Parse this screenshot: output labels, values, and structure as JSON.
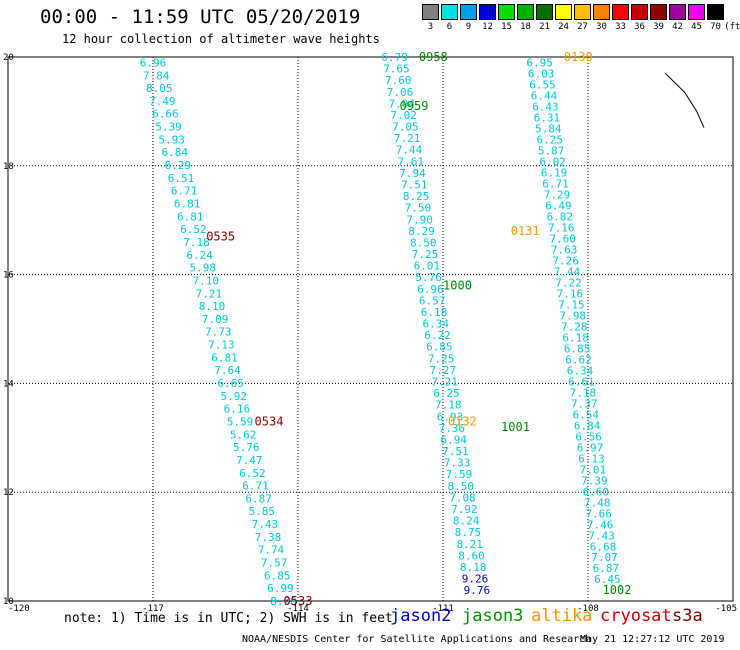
{
  "header": {
    "title": "00:00 - 11:59 UTC 05/20/2019",
    "subtitle": "12 hour collection of altimeter wave heights"
  },
  "colorscale": {
    "unit": "(ft)",
    "bins": [
      {
        "label": "3",
        "color": "#808080"
      },
      {
        "label": "6",
        "color": "#00e0e0"
      },
      {
        "label": "9",
        "color": "#00a0e8"
      },
      {
        "label": "12",
        "color": "#0000d8"
      },
      {
        "label": "15",
        "color": "#00e000"
      },
      {
        "label": "18",
        "color": "#00b000"
      },
      {
        "label": "21",
        "color": "#007000"
      },
      {
        "label": "24",
        "color": "#ffff00"
      },
      {
        "label": "27",
        "color": "#ffc000"
      },
      {
        "label": "30",
        "color": "#ff8000"
      },
      {
        "label": "33",
        "color": "#ff0000"
      },
      {
        "label": "36",
        "color": "#c80000"
      },
      {
        "label": "39",
        "color": "#900000"
      },
      {
        "label": "42",
        "color": "#a000a0"
      },
      {
        "label": "45",
        "color": "#f000f0"
      },
      {
        "label": "70",
        "color": "#000000"
      }
    ]
  },
  "footer": {
    "note": "note: 1) Time is in UTC; 2) SWH is in feet",
    "legend": [
      {
        "label": "jason2",
        "color": "#0000d0"
      },
      {
        "label": "jason3",
        "color": "#009000"
      },
      {
        "label": "altika",
        "color": "#ff9000"
      },
      {
        "label": "cryosat",
        "color": "#d00000"
      },
      {
        "label": "s3a",
        "color": "#800000"
      }
    ],
    "credit": "NOAA/NESDIS Center for Satellite Applications and Research",
    "stamp": "May 21 12:27:12 UTC 2019"
  },
  "chart_data": {
    "type": "scatter",
    "title": "12 hour collection of altimeter wave heights",
    "xlim": [
      -120,
      -105
    ],
    "ylim": [
      10,
      20
    ],
    "xticks": [
      "-120",
      "-117",
      "-114",
      "-111",
      "-108",
      "-105"
    ],
    "yticks": [
      "10",
      "12",
      "14",
      "16",
      "18",
      "20"
    ],
    "grid": true,
    "colors": {
      "cyan": "#00c8d8",
      "blue": "#0000c0",
      "green": "#008800",
      "orange": "#ff9900",
      "darkred": "#8b0000"
    },
    "tracks": [
      {
        "name": "s3a",
        "color_key": "darkred",
        "start": [
          -117.0,
          19.9
        ],
        "end": [
          -114.3,
          10.0
        ],
        "values": [
          "6.96",
          "7.84",
          "8.05",
          "7.49",
          "6.66",
          "5.39",
          "5.93",
          "6.84",
          "6.29",
          "6.51",
          "6.71",
          "6.81",
          "6.81",
          "6.52",
          "7.18",
          "6.24",
          "5.98",
          "7.10",
          "7.21",
          "8.10",
          "7.09",
          "7.73",
          "7.13",
          "6.81",
          "7.64",
          "6.65",
          "5.92",
          "6.16",
          "5.59",
          "5.62",
          "5.76",
          "7.47",
          "6.52",
          "6.71",
          "6.87",
          "5.85",
          "7.43",
          "7.38",
          "7.74",
          "7.57",
          "6.85",
          "6.99",
          "8.98"
        ],
        "times": [
          {
            "label": "0535",
            "lon": -115.6,
            "lat": 16.7
          },
          {
            "label": "0534",
            "lon": -114.6,
            "lat": 13.3
          },
          {
            "label": "0533",
            "lon": -114.0,
            "lat": 10.0
          }
        ]
      },
      {
        "name": "jason3",
        "color_key": "green",
        "start": [
          -112.0,
          20.0
        ],
        "end": [
          -110.3,
          10.2
        ],
        "values": [
          "6.79",
          "7.65",
          "7.60",
          "7.06",
          "7.94",
          "7.02",
          "7.05",
          "7.21",
          "7.44",
          "7.61",
          "7.94",
          "7.51",
          "8.25",
          "7.50",
          "7.90",
          "8.29",
          "8.50",
          "7.25",
          "6.01",
          "5.76",
          "6.96",
          "6.57",
          "6.18",
          "6.34",
          "6.22",
          "6.85",
          "7.25",
          "7.27",
          "7.21",
          "6.25",
          "7.18",
          "6.93",
          "7.36",
          "6.94",
          "7.51",
          "7.33",
          "7.59",
          "8.50",
          "7.08",
          "7.92",
          "8.24",
          "8.75",
          "8.21",
          "8.60",
          "8.18",
          "9.26",
          "9.76"
        ],
        "blue_from": 45,
        "times": [
          {
            "label": "0958",
            "lon": -111.2,
            "lat": 20.0
          },
          {
            "label": "0959",
            "lon": -111.6,
            "lat": 19.1
          },
          {
            "label": "1000",
            "lon": -110.7,
            "lat": 15.8
          },
          {
            "label": "1001",
            "lon": -109.5,
            "lat": 13.2
          },
          {
            "label": "1002",
            "lon": -107.4,
            "lat": 10.2
          }
        ]
      },
      {
        "name": "altika",
        "color_key": "orange",
        "start": [
          -109.0,
          19.9
        ],
        "end": [
          -107.6,
          10.4
        ],
        "values": [
          "6.95",
          "6.03",
          "6.55",
          "6.44",
          "6.43",
          "6.31",
          "5.84",
          "6.25",
          "5.87",
          "6.02",
          "6.19",
          "6.71",
          "7.29",
          "6.49",
          "6.82",
          "7.16",
          "7.60",
          "7.63",
          "7.26",
          "7.44",
          "7.22",
          "7.16",
          "7.15",
          "7.98",
          "7.28",
          "6.18",
          "6.85",
          "6.62",
          "6.34",
          "6.61",
          "7.18",
          "7.37",
          "6.54",
          "6.84",
          "6.56",
          "6.97",
          "6.13",
          "7.01",
          "7.39",
          "6.60",
          "7.48",
          "7.66",
          "7.46",
          "7.43",
          "6.68",
          "7.07",
          "6.87",
          "6.45"
        ],
        "times": [
          {
            "label": "0130",
            "lon": -108.2,
            "lat": 20.0
          },
          {
            "label": "0131",
            "lon": -109.3,
            "lat": 16.8
          },
          {
            "label": "0132",
            "lon": -110.6,
            "lat": 13.3
          }
        ]
      }
    ],
    "coastline": [
      [
        -106.4,
        19.7
      ],
      [
        -106.0,
        19.35
      ],
      [
        -105.75,
        19.0
      ],
      [
        -105.6,
        18.7
      ]
    ]
  }
}
